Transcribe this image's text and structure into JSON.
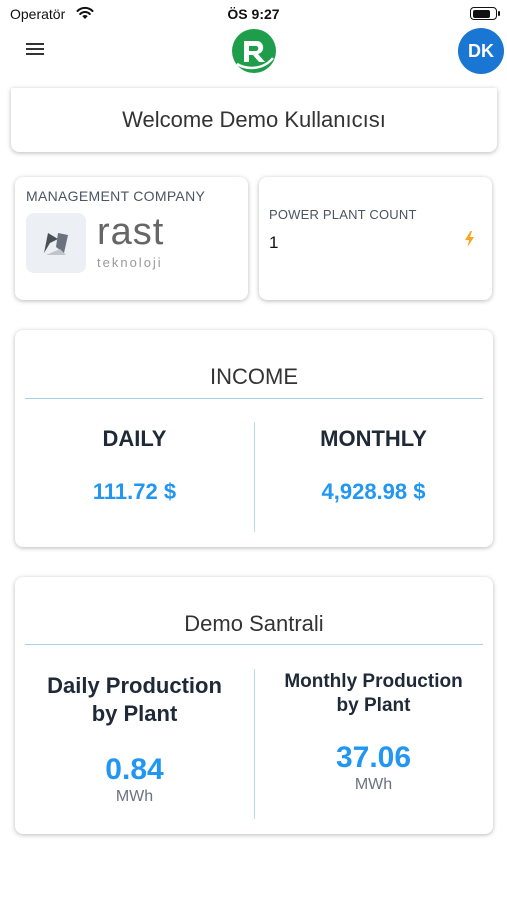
{
  "status_bar": {
    "carrier": "Operatör",
    "time": "ÖS 9:27",
    "battery_level": 0.85
  },
  "header": {
    "avatar_initials": "DK"
  },
  "welcome": {
    "text": "Welcome Demo Kullanıcısı"
  },
  "management": {
    "label": "MANAGEMENT COMPANY",
    "logo_word": "rast",
    "logo_sub": "teknoloji"
  },
  "plants": {
    "label": "POWER PLANT COUNT",
    "value": "1"
  },
  "income": {
    "title": "INCOME",
    "daily_label": "DAILY",
    "daily_value": "111.72 $",
    "monthly_label": "MONTHLY",
    "monthly_value": "4,928.98 $"
  },
  "plant_production": {
    "title": "Demo Santrali",
    "daily_label_line1": "Daily Production",
    "daily_label_line2": "by Plant",
    "daily_value": "0.84",
    "daily_unit": "MWh",
    "monthly_label_line1": "Monthly Production",
    "monthly_label_line2": "by Plant",
    "monthly_value": "37.06",
    "monthly_unit": "MWh"
  },
  "colors": {
    "accent": "#2196f3",
    "avatar": "#1976d2",
    "logo_green": "#1e9e4a",
    "bolt": "#f5a623"
  }
}
